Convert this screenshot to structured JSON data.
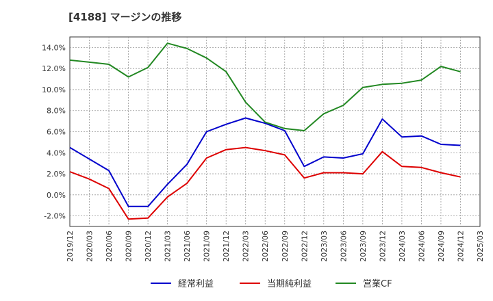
{
  "chart_data": {
    "type": "line",
    "title": "[4188]  マージンの推移",
    "x": [
      "2019/12",
      "2020/03",
      "2020/06",
      "2020/09",
      "2020/12",
      "2021/03",
      "2021/06",
      "2021/09",
      "2021/12",
      "2022/03",
      "2022/06",
      "2022/09",
      "2022/12",
      "2023/03",
      "2023/06",
      "2023/09",
      "2023/12",
      "2024/03",
      "2024/06",
      "2024/09",
      "2024/12"
    ],
    "x_ticks": [
      "2019/12",
      "2020/03",
      "2020/06",
      "2020/09",
      "2020/12",
      "2021/03",
      "2021/06",
      "2021/09",
      "2021/12",
      "2022/03",
      "2022/06",
      "2022/09",
      "2022/12",
      "2023/03",
      "2023/06",
      "2023/09",
      "2023/12",
      "2024/03",
      "2024/06",
      "2024/09",
      "2024/12",
      "2025/03"
    ],
    "y_ticks": [
      "14.0%",
      "12.0%",
      "10.0%",
      "8.0%",
      "6.0%",
      "4.0%",
      "2.0%",
      "0.0%",
      "-2.0%"
    ],
    "y_tick_values": [
      14,
      12,
      10,
      8,
      6,
      4,
      2,
      0,
      -2
    ],
    "ylim": [
      -3.0,
      15.0
    ],
    "grid": true,
    "legend_position": "bottom",
    "series": [
      {
        "name": "経常利益",
        "color": "#0000cc",
        "values": [
          4.5,
          3.4,
          2.3,
          -1.1,
          -1.1,
          1.0,
          2.9,
          6.0,
          6.7,
          7.3,
          6.8,
          6.1,
          2.7,
          3.6,
          3.5,
          3.9,
          7.2,
          5.5,
          5.6,
          4.8,
          4.7
        ]
      },
      {
        "name": "当期純利益",
        "color": "#dd0000",
        "values": [
          2.2,
          1.5,
          0.6,
          -2.3,
          -2.2,
          -0.2,
          1.1,
          3.5,
          4.3,
          4.5,
          4.2,
          3.8,
          1.6,
          2.1,
          2.1,
          2.0,
          4.1,
          2.7,
          2.6,
          2.1,
          1.7
        ]
      },
      {
        "name": "営業CF",
        "color": "#228822",
        "values": [
          12.8,
          12.6,
          12.4,
          11.2,
          12.1,
          14.4,
          13.9,
          13.0,
          11.7,
          8.8,
          6.9,
          6.3,
          6.1,
          7.7,
          8.5,
          10.2,
          10.5,
          10.6,
          10.9,
          12.2,
          11.7
        ]
      }
    ]
  }
}
